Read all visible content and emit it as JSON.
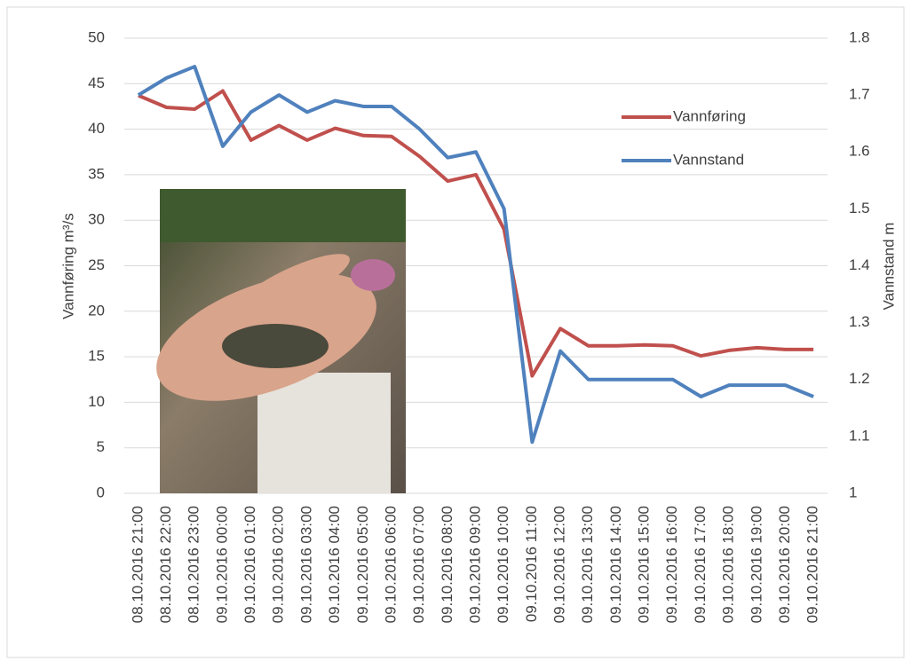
{
  "chart_data": {
    "type": "line",
    "y_axis_label": "Vannføring m³/s",
    "y2_axis_label": "Vannstand m",
    "categories": [
      "08.10.2016 21:00",
      "08.10.2016 22:00",
      "08.10.2016 23:00",
      "09.10.2016 00:00",
      "09.10.2016 01:00",
      "09.10.2016 02:00",
      "09.10.2016 03:00",
      "09.10.2016 04:00",
      "09.10.2016 05:00",
      "09.10.2016 06:00",
      "09.10.2016 07:00",
      "09.10.2016 08:00",
      "09.10.2016 09:00",
      "09.10.2016 10:00",
      "09.10.2016 11:00",
      "09.10.2016 12:00",
      "09.10.2016 13:00",
      "09.10.2016 14:00",
      "09.10.2016 15:00",
      "09.10.2016 16:00",
      "09.10.2016 17:00",
      "09.10.2016 18:00",
      "09.10.2016 19:00",
      "09.10.2016 20:00",
      "09.10.2016 21:00"
    ],
    "series": [
      {
        "name": "Vannføring",
        "color": "#c0504d",
        "values": [
          43.7,
          42.4,
          42.2,
          44.2,
          38.8,
          40.4,
          38.8,
          40.1,
          39.3,
          39.2,
          37.0,
          34.3,
          35.0,
          29.0,
          12.9,
          18.1,
          16.2,
          16.2,
          16.3,
          16.2,
          15.1,
          15.7,
          16.0,
          15.8,
          15.8
        ]
      },
      {
        "name": "Vannstand",
        "color": "#4f81bd",
        "axis": "y2",
        "values": [
          1.7,
          1.73,
          1.75,
          1.61,
          1.67,
          1.7,
          1.67,
          1.69,
          1.68,
          1.68,
          1.64,
          1.59,
          1.6,
          1.5,
          1.09,
          1.25,
          1.2,
          1.2,
          1.2,
          1.2,
          1.17,
          1.19,
          1.19,
          1.19,
          1.17
        ]
      }
    ],
    "ylim": [
      0,
      50
    ],
    "yticks": [
      0,
      5,
      10,
      15,
      20,
      25,
      30,
      35,
      40,
      45,
      50
    ],
    "y2lim": [
      1,
      1.8
    ],
    "y2ticks": [
      1,
      1.1,
      1.2,
      1.3,
      1.4,
      1.5,
      1.6,
      1.7,
      1.8
    ],
    "grid": true,
    "legend": "upper right"
  }
}
